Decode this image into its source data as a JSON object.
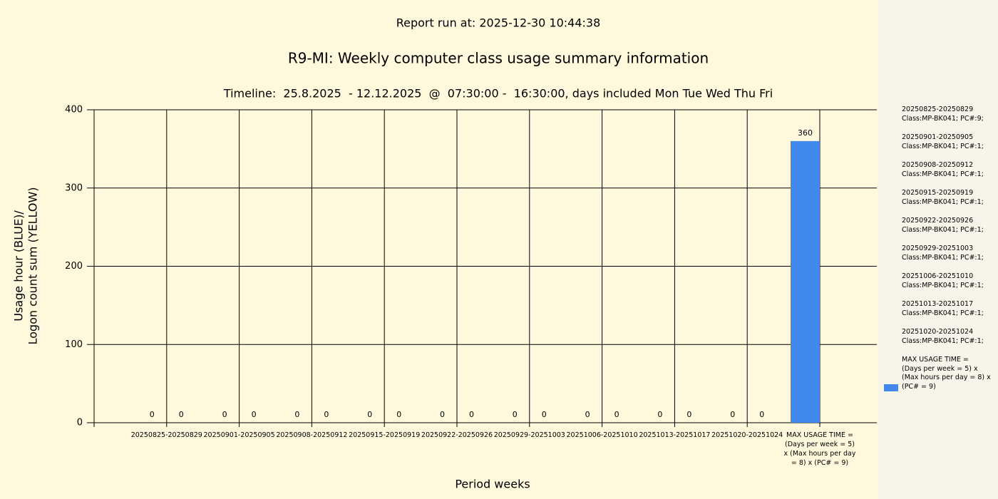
{
  "chart_data": {
    "type": "bar",
    "header": "Report run at: 2025-12-30 10:44:38",
    "title": "R9-MI: Weekly computer class usage summary information",
    "subtitle": "Timeline:  25.8.2025  - 12.12.2025  @  07:30:00 -  16:30:00, days included Mon Tue Wed Thu Fri",
    "xlabel": "Period weeks",
    "ylabel": [
      "Usage hour (BLUE)/",
      "Logon count sum (YELLOW)"
    ],
    "categories": [
      "20250825-20250829",
      "20250901-20250905",
      "20250908-20250912",
      "20250915-20250919",
      "20250922-20250926",
      "20250929-20251003",
      "20251006-20251010",
      "20251013-20251017",
      "20251020-20251024",
      "MAX USAGE TIME = (Days per week = 5) x (Max hours per day = 8) x (PC# = 9)"
    ],
    "series": [
      {
        "color": "#4189ec",
        "values": [
          0,
          0,
          0,
          0,
          0,
          0,
          0,
          0,
          0,
          360
        ]
      },
      {
        "color": "#f2d24b",
        "values": [
          0,
          0,
          0,
          0,
          0,
          0,
          0,
          0,
          0,
          null
        ]
      }
    ],
    "ylim": [
      0,
      400
    ],
    "yticks": [
      0,
      100,
      200,
      300,
      400
    ],
    "grid": true,
    "legend": {
      "entries": [
        {
          "lines": [
            "20250825-20250829",
            "Class:MP-BK041; PC#:9;"
          ]
        },
        {
          "lines": [
            "20250901-20250905",
            "Class:MP-BK041; PC#:1;"
          ]
        },
        {
          "lines": [
            "20250908-20250912",
            "Class:MP-BK041; PC#:1;"
          ]
        },
        {
          "lines": [
            "20250915-20250919",
            "Class:MP-BK041; PC#:1;"
          ]
        },
        {
          "lines": [
            "20250922-20250926",
            "Class:MP-BK041; PC#:1;"
          ]
        },
        {
          "lines": [
            "20250929-20251003",
            "Class:MP-BK041; PC#:1;"
          ],
          "color": "#4189ec"
        },
        {
          "lines": [
            "20251006-20251010",
            "Class:MP-BK041; PC#:1;"
          ]
        },
        {
          "lines": [
            "20251013-20251017",
            "Class:MP-BK041; PC#:1;"
          ]
        },
        {
          "lines": [
            "20251020-20251024",
            "Class:MP-BK041; PC#:1;"
          ]
        },
        {
          "lines": [
            "MAX USAGE TIME =",
            "(Days per week = 5) x (Max hours per day = 8) x (PC# = 9)"
          ]
        }
      ]
    }
  }
}
